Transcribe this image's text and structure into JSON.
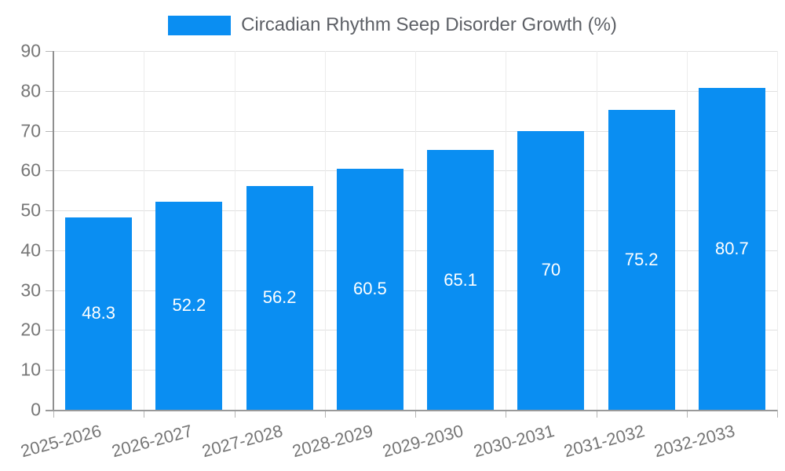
{
  "legend": {
    "label": "Circadian Rhythm Seep Disorder Growth (%)",
    "swatch_color": "#0a8ef2"
  },
  "chart_data": {
    "type": "bar",
    "title": "Circadian Rhythm Seep Disorder Growth (%)",
    "categories": [
      "2025-2026",
      "2026-2027",
      "2027-2028",
      "2028-2029",
      "2029-2030",
      "2030-2031",
      "2031-2032",
      "2032-2033"
    ],
    "values": [
      48.3,
      52.2,
      56.2,
      60.5,
      65.1,
      70,
      75.2,
      80.7
    ],
    "value_labels": [
      "48.3",
      "52.2",
      "56.2",
      "60.5",
      "65.1",
      "70",
      "75.2",
      "80.7"
    ],
    "xlabel": "",
    "ylabel": "",
    "ylim": [
      0,
      90
    ],
    "ytick_step": 10,
    "ytick_labels": [
      "0",
      "10",
      "20",
      "30",
      "40",
      "50",
      "60",
      "70",
      "80",
      "90"
    ],
    "bar_color": "#0a8ef2",
    "value_label_color": "#ffffff",
    "grid": true,
    "legend_position": "top",
    "xlabel_rotation_deg": -15
  }
}
